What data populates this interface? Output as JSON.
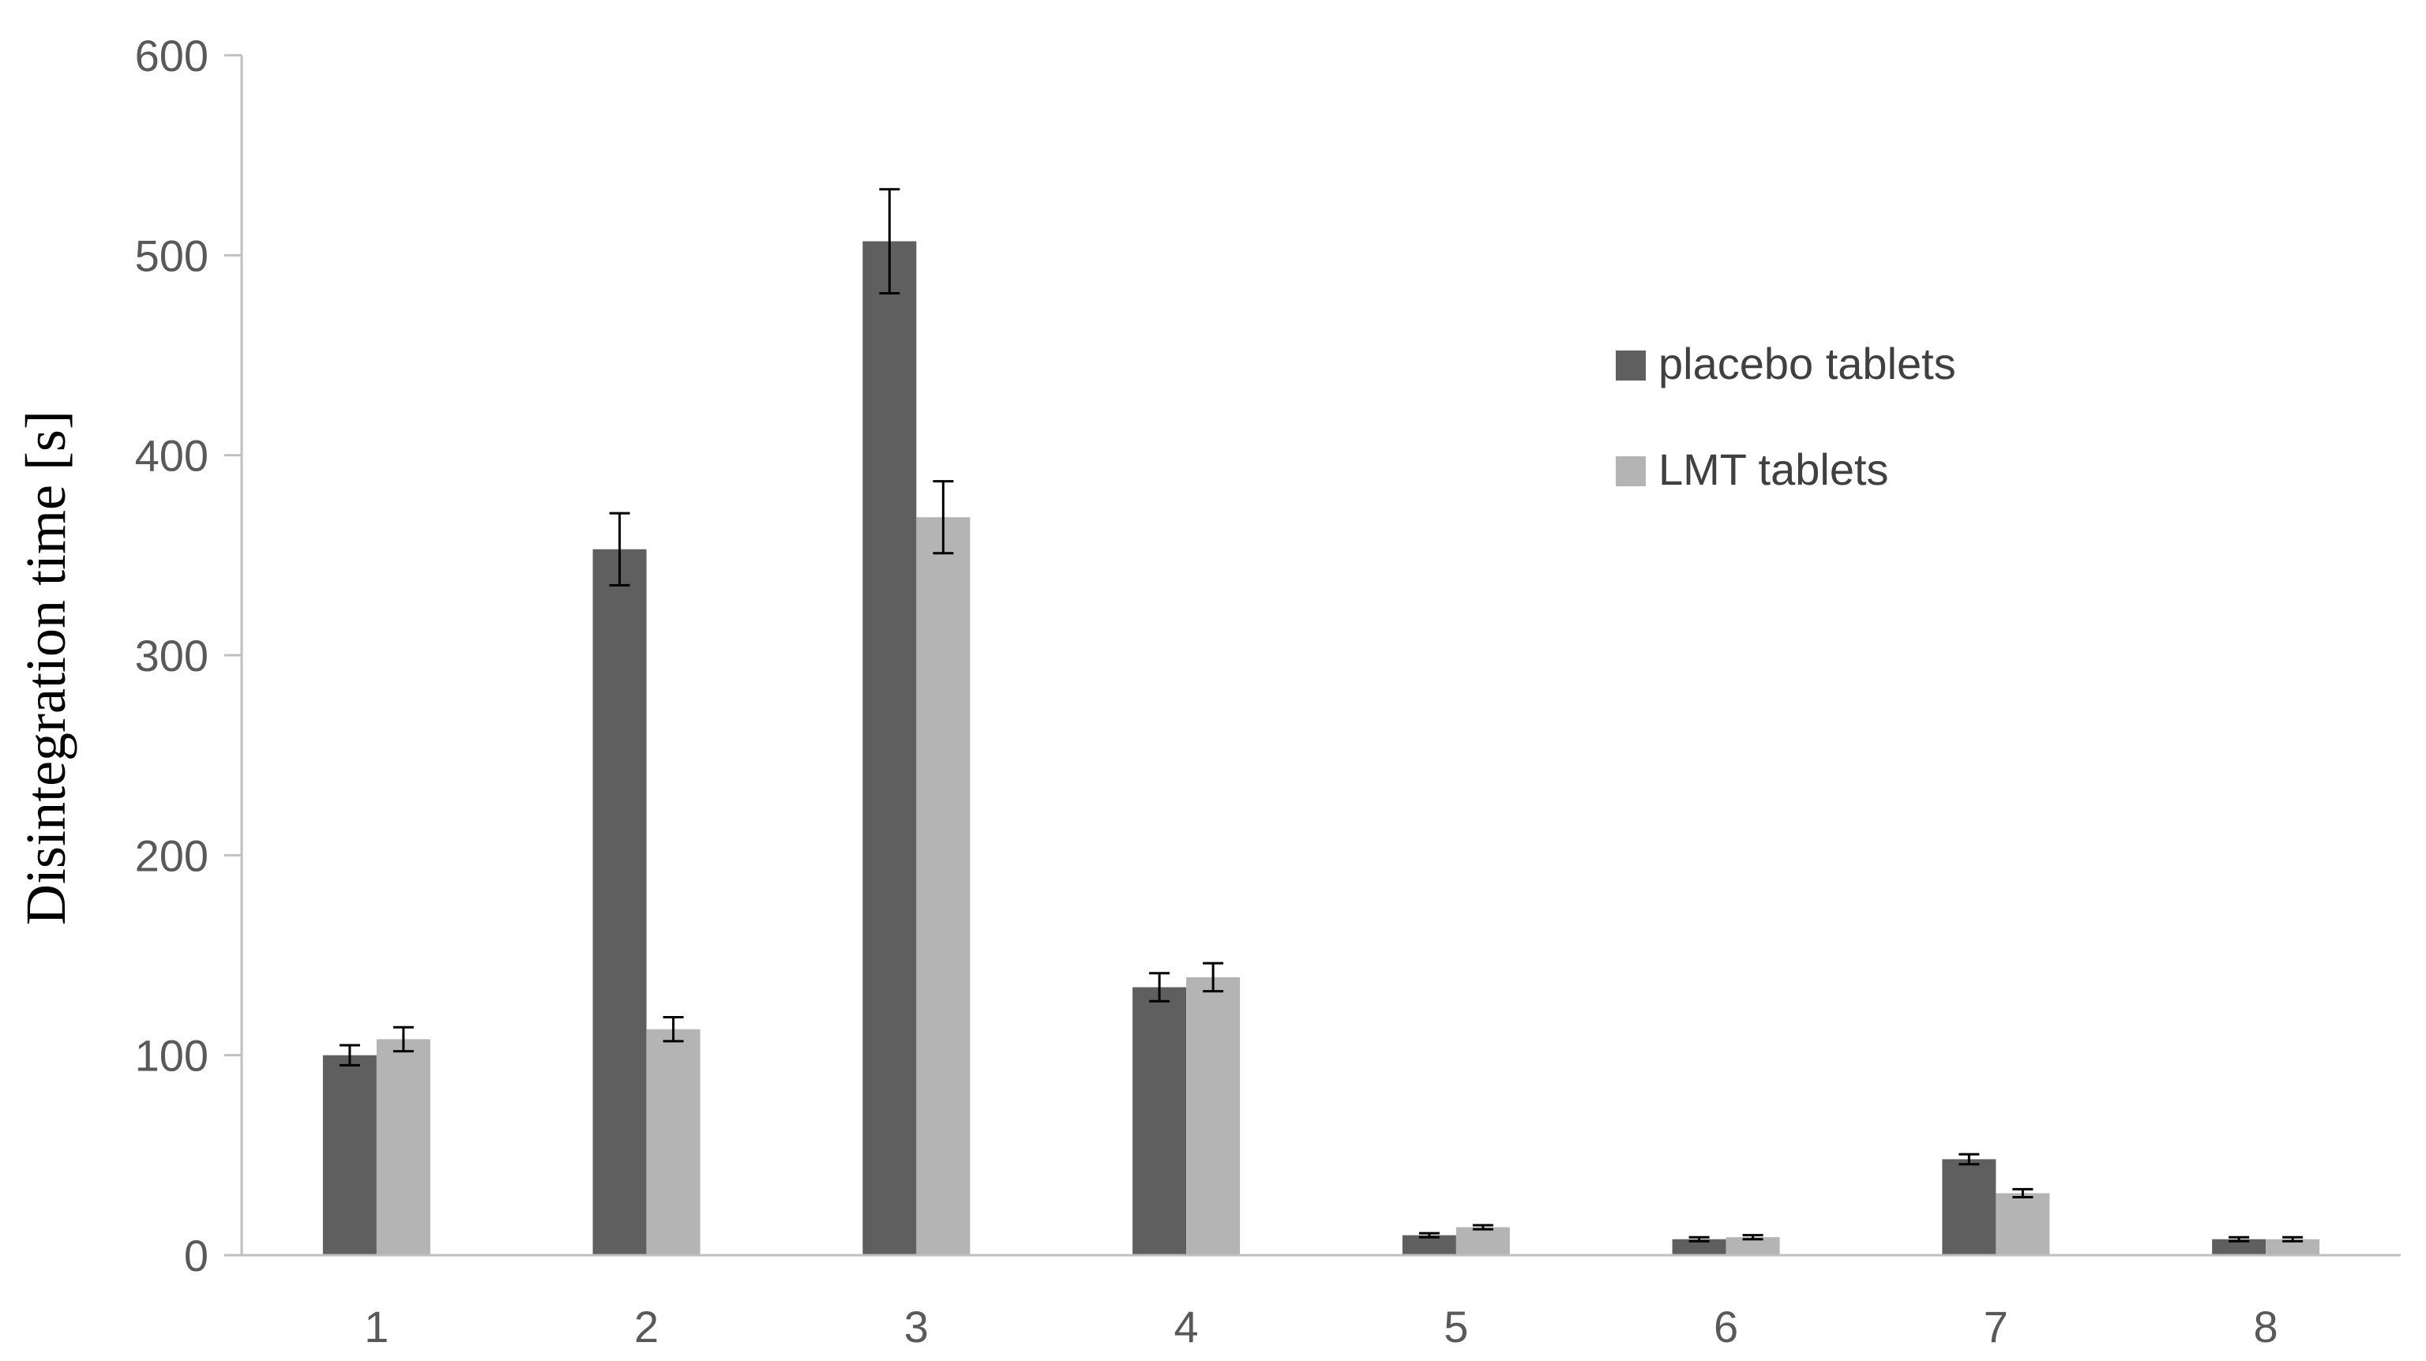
{
  "chart_data": {
    "type": "bar",
    "categories": [
      "1",
      "2",
      "3",
      "4",
      "5",
      "6",
      "7",
      "8"
    ],
    "series": [
      {
        "name": "placebo tablets",
        "color": "#5f5f5f",
        "values": [
          100,
          353,
          507,
          134,
          10,
          8,
          48,
          8
        ],
        "errors": [
          5,
          18,
          26,
          7,
          1,
          1,
          2.5,
          1
        ]
      },
      {
        "name": "LMT tablets",
        "color": "#b4b4b4",
        "values": [
          108,
          113,
          369,
          139,
          14,
          9,
          31,
          8
        ],
        "errors": [
          6,
          6,
          18,
          7,
          1,
          1,
          2,
          1
        ]
      }
    ],
    "ylabel": "Disintegration time  [s]",
    "xlabel": "",
    "ylim": [
      0,
      600
    ],
    "yticks": [
      "0",
      "100",
      "200",
      "300",
      "400",
      "500",
      "600"
    ],
    "grid": false,
    "legend_position": "top-right"
  }
}
